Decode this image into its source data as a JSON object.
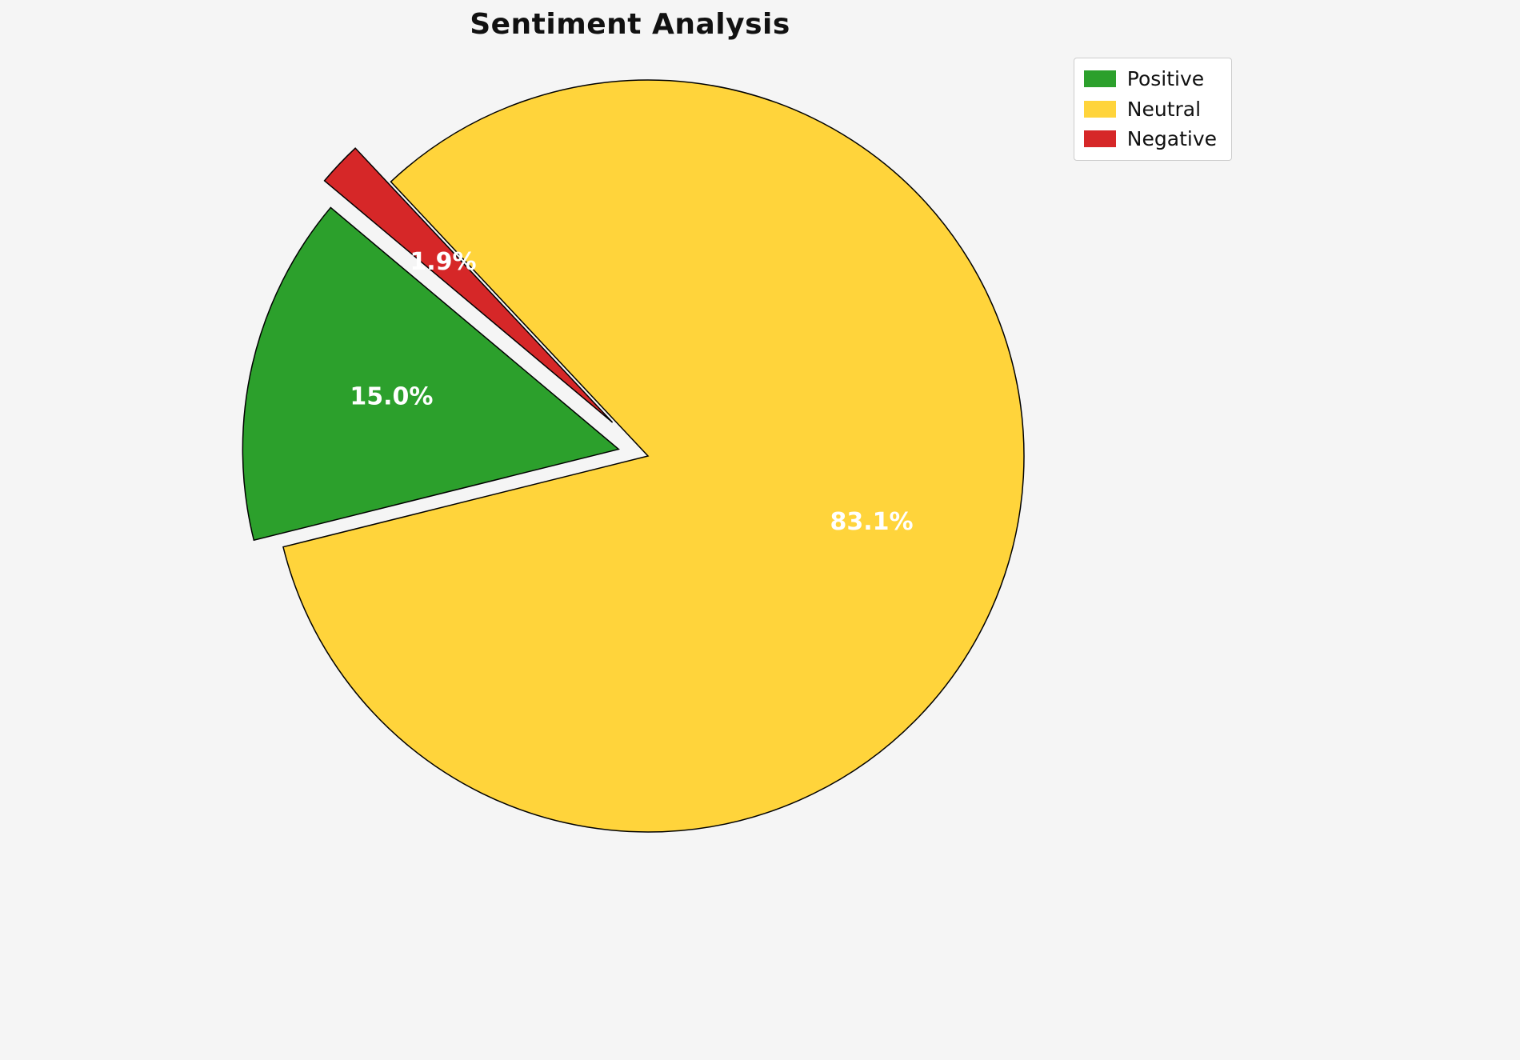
{
  "chart_data": {
    "type": "pie",
    "title": "Sentiment Analysis",
    "slices": [
      {
        "name": "Positive",
        "value": 15.0,
        "pct_label": "15.0%",
        "color": "#2ca02c",
        "explode": 0.08
      },
      {
        "name": "Neutral",
        "value": 83.1,
        "pct_label": "83.1%",
        "color": "#ffd43b",
        "explode": 0.0
      },
      {
        "name": "Negative",
        "value": 1.9,
        "pct_label": "1.9%",
        "color": "#d62728",
        "explode": 0.13
      }
    ],
    "start_angle": 140,
    "direction": "counterclockwise",
    "pct_distance": 0.62,
    "edge_color": "#000000",
    "label_color": "#ffffff",
    "legend": {
      "position": "upper right",
      "entries": [
        "Positive",
        "Neutral",
        "Negative"
      ]
    }
  }
}
